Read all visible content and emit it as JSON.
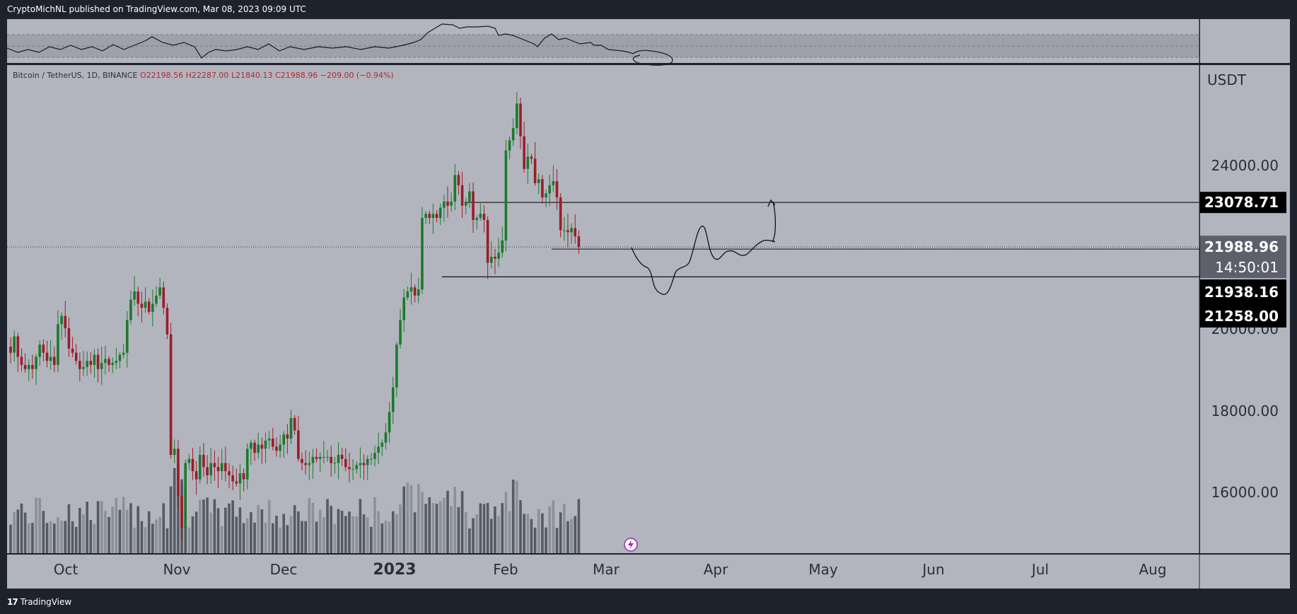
{
  "header": {
    "publisher_line": "CryptoMichNL published on TradingView.com, Mar 08, 2023 09:09 UTC"
  },
  "footer": {
    "brand": "TradingView",
    "logo_glyph": "17"
  },
  "symbol_legend": {
    "pair": "Bitcoin / TetherUS, 1D, BINANCE",
    "open": "O22198.56",
    "high": "H22287.00",
    "low": "L21840.13",
    "close": "C21988.96",
    "change": "−209.00 (−0.94%)"
  },
  "axis": {
    "currency": "USDT",
    "ticks": [
      "24000.00",
      "20000.00",
      "18000.00",
      "16000.00"
    ],
    "time_labels": [
      "Oct",
      "Nov",
      "Dec",
      "2023",
      "Feb",
      "Mar",
      "Apr",
      "May",
      "Jun",
      "Jul",
      "Aug"
    ]
  },
  "price_tags": {
    "resistance": "23078.71",
    "last_price": "21988.96",
    "countdown": "14:50:01",
    "support_1": "21938.16",
    "support_2": "21258.00"
  },
  "colors": {
    "background": "#b2b5be",
    "panel": "#1e222d",
    "up": "#1b7a2b",
    "down": "#9c1c2a",
    "volume_dark": "#555a63",
    "volume_light": "#8c9098",
    "tag_bg": "#000000",
    "tag_gray": "#5d606b",
    "lightning": "#9c27b0"
  },
  "chart_data": {
    "type": "candlestick",
    "symbol": "Bitcoin / TetherUS",
    "interval": "1D",
    "exchange": "BINANCE",
    "y_axis_unit": "USDT",
    "ylim": [
      14500,
      26700
    ],
    "y_ticks": [
      16000,
      18000,
      20000,
      24000
    ],
    "horizontal_levels": [
      23078.71,
      21938.16,
      21258.0
    ],
    "last_price": 21988.96,
    "ohlc_last": {
      "open": 22198.56,
      "high": 22287.0,
      "low": 21840.13,
      "close": 21988.96,
      "change": -209.0,
      "change_pct": -0.94
    },
    "candles_start": "2022-09-21",
    "candles_close": [
      19400,
      19800,
      19300,
      19100,
      19000,
      19100,
      19000,
      19300,
      19600,
      19400,
      19200,
      19300,
      19100,
      20100,
      20300,
      20000,
      19500,
      19400,
      19200,
      19000,
      19050,
      19200,
      19100,
      19350,
      19000,
      19150,
      19250,
      19100,
      19150,
      19200,
      19350,
      19400,
      20200,
      20700,
      20900,
      20600,
      20500,
      20650,
      20400,
      20600,
      20800,
      21000,
      20500,
      19850,
      16900,
      17050,
      15900,
      15100,
      16700,
      16800,
      16500,
      16300,
      16900,
      16600,
      16400,
      16700,
      16600,
      16500,
      16700,
      16500,
      16400,
      16250,
      16200,
      16450,
      16300,
      17050,
      17200,
      16950,
      17150,
      17050,
      17250,
      17300,
      17100,
      17000,
      17150,
      17400,
      17300,
      17800,
      17500,
      16800,
      16700,
      16650,
      16700,
      16850,
      16800,
      16850,
      16850,
      16850,
      16700,
      16700,
      16900,
      16800,
      16600,
      16550,
      16550,
      16650,
      16700,
      16650,
      16800,
      16800,
      16950,
      17100,
      17200,
      17450,
      17950,
      18550,
      19600,
      20200,
      20750,
      20900,
      21000,
      20800,
      20950,
      22700,
      22800,
      22700,
      22800,
      22700,
      22950,
      23100,
      23000,
      23100,
      23750,
      23500,
      23000,
      23100,
      23350,
      22650,
      22700,
      22800,
      22650,
      21600,
      21750,
      21700,
      21850,
      22150,
      24350,
      24600,
      24900,
      25500,
      24700,
      23900,
      24200,
      24150,
      23550,
      23650,
      23200,
      23300,
      23500,
      23600,
      23200,
      22400,
      22400,
      22350,
      22450,
      22250,
      21990
    ],
    "volume_note": "daily volume bars along the bottom of the chart",
    "projection_note": "hand-drawn projected path from Mar down toward ~19700 then up past 23078 in mid Apr"
  }
}
